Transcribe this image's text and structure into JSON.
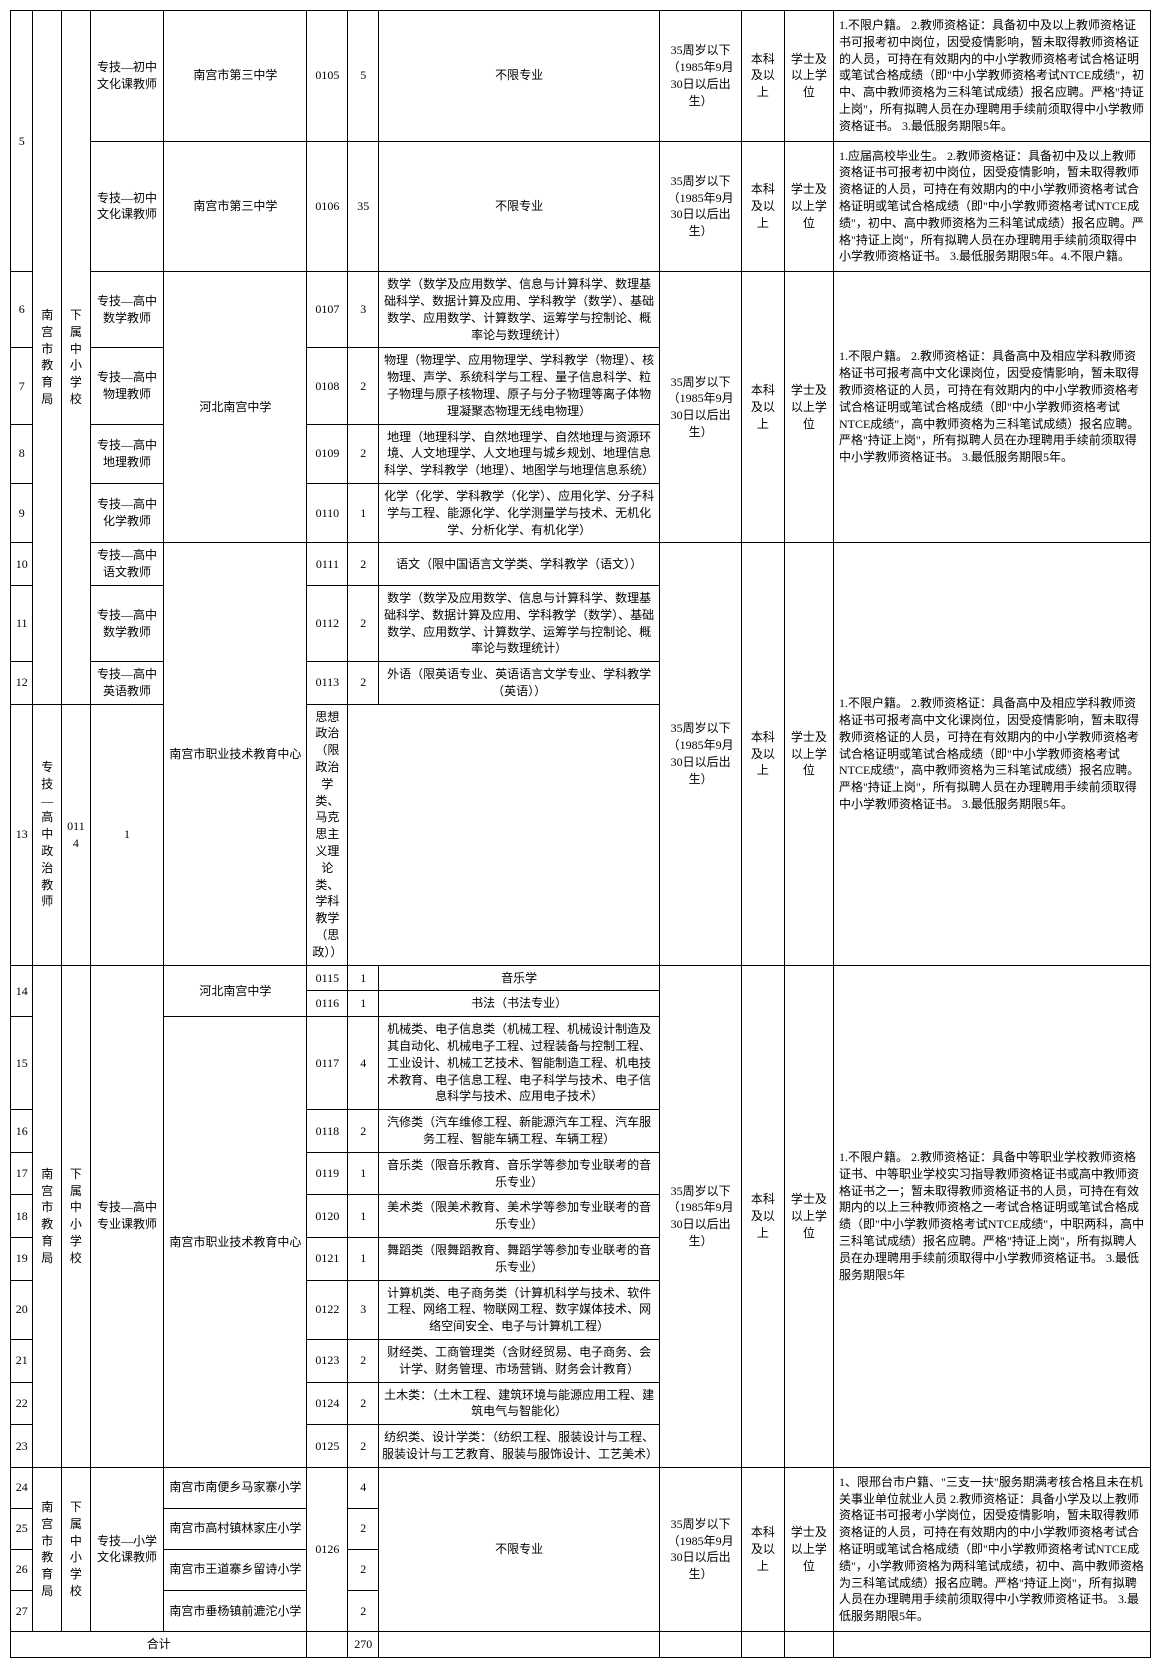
{
  "dept1": "南宫市教育局",
  "unit1": "下属中小学校",
  "dept2": "南宫市教育局",
  "unit2": "下属中小学校",
  "dept3": "南宫市教育局",
  "unit3": "下属中小学校",
  "age_limit": "35周岁以下（1985年9月30日以后出生）",
  "edu": "本科及以上",
  "degree": "学士及以上学位",
  "no_limit": "不限专业",
  "total_label": "合计",
  "total_num": "270",
  "r5_idx": "5",
  "r5_pos": "专技—初中文化课教师",
  "r5_school": "南宫市第三中学",
  "r5_code": "0105",
  "r5_num": "5",
  "r5_req": "1.不限户籍。\n2.教师资格证：具备初中及以上教师资格证书可报考初中岗位，因受疫情影响，暂未取得教师资格证的人员，可持在有效期内的中小学教师资格考试合格证明或笔试合格成绩（即\"中小学教师资格考试NTCE成绩\"，初中、高中教师资格为三科笔试成绩）报名应聘。严格\"持证上岗\"，所有拟聘人员在办理聘用手续前须取得中小学教师资格证书。\n3.最低服务期限5年。",
  "r5b_pos": "专技—初中文化课教师",
  "r5b_school": "南宫市第三中学",
  "r5b_code": "0106",
  "r5b_num": "35",
  "r5b_req": "1.应届高校毕业生。\n2.教师资格证：具备初中及以上教师资格证书可报考初中岗位，因受疫情影响，暂未取得教师资格证的人员，可持在有效期内的中小学教师资格考试合格证明或笔试合格成绩（即\"中小学教师资格考试NTCE成绩\"，初中、高中教师资格为三科笔试成绩）报名应聘。严格\"持证上岗\"，所有拟聘人员在办理聘用手续前须取得中小学教师资格证书。\n3.最低服务期限5年。4.不限户籍。",
  "r6_idx": "6",
  "r6_pos": "专技—高中数学教师",
  "r6_code": "0107",
  "r6_num": "3",
  "r6_major": "数学（数学及应用数学、信息与计算科学、数理基础科学、数据计算及应用、学科教学（数学）、基础数学、应用数学、计算数学、运筹学与控制论、概率论与数理统计）",
  "r7_idx": "7",
  "r7_pos": "专技—高中物理教师",
  "r7_code": "0108",
  "r7_num": "2",
  "r7_major": "物理（物理学、应用物理学、学科教学（物理）、核物理、声学、系统科学与工程、量子信息科学、粒子物理与原子核物理、原子与分子物理等离子体物理凝聚态物理无线电物理）",
  "r8_idx": "8",
  "r8_pos": "专技—高中地理教师",
  "r8_code": "0109",
  "r8_num": "2",
  "r8_major": "地理（地理科学、自然地理学、自然地理与资源环境、人文地理学、人文地理与城乡规划、地理信息科学、学科教学（地理）、地图学与地理信息系统）",
  "r9_idx": "9",
  "r9_pos": "专技—高中化学教师",
  "r9_code": "0110",
  "r9_num": "1",
  "r9_major": "化学（化学、学科教学（化学）、应用化学、分子科学与工程、能源化学、化学测量学与技术、无机化学、分析化学、有机化学）",
  "school_hb": "河北南宫中学",
  "req_hs_sci": "1.不限户籍。\n2.教师资格证：具备高中及相应学科教师资格证书可报考高中文化课岗位，因受疫情影响，暂未取得教师资格证的人员，可持在有效期内的中小学教师资格考试合格证明或笔试合格成绩（即\"中小学教师资格考试NTCE成绩\"，高中教师资格为三科笔试成绩）报名应聘。严格\"持证上岗\"，所有拟聘人员在办理聘用手续前须取得中小学教师资格证书。\n3.最低服务期限5年。",
  "r10_idx": "10",
  "r10_pos": "专技—高中语文教师",
  "r10_code": "0111",
  "r10_num": "2",
  "r10_major": "语文（限中国语言文学类、学科教学（语文））",
  "r11_idx": "11",
  "r11_pos": "专技—高中数学教师",
  "r11_code": "0112",
  "r11_num": "2",
  "r11_major": "数学（数学及应用数学、信息与计算科学、数理基础科学、数据计算及应用、学科教学（数学）、基础数学、应用数学、计算数学、运筹学与控制论、概率论与数理统计）",
  "r12_idx": "12",
  "r12_pos": "专技—高中英语教师",
  "r12_code": "0113",
  "r12_num": "2",
  "r12_major": "外语（限英语专业、英语语言文学专业、学科教学（英语））",
  "r13_idx": "13",
  "r13_pos": "专技—高中政治教师",
  "r13_code": "0114",
  "r13_num": "1",
  "r13_major": "思想政治（限政治学类、马克思主义理论类、学科教学（思政））",
  "school_voc": "南宫市职业技术教育中心",
  "req_hs_lib": "1.不限户籍。\n2.教师资格证：具备高中及相应学科教师资格证书可报考高中文化课岗位，因受疫情影响，暂未取得教师资格证的人员，可持在有效期内的中小学教师资格考试合格证明或笔试合格成绩（即\"中小学教师资格考试NTCE成绩\"，高中教师资格为三科笔试成绩）报名应聘。严格\"持证上岗\"，所有拟聘人员在办理聘用手续前须取得中小学教师资格证书。\n3.最低服务期限5年。",
  "r14_idx": "14",
  "r14a_code": "0115",
  "r14a_num": "1",
  "r14a_major": "音乐学",
  "r14b_code": "0116",
  "r14b_num": "1",
  "r14b_major": "书法（书法专业）",
  "r15_idx": "15",
  "r15_code": "0117",
  "r15_num": "4",
  "r15_major": "机械类、电子信息类（机械工程、机械设计制造及其自动化、机械电子工程、过程装备与控制工程、工业设计、机械工艺技术、智能制造工程、机电技术教育、电子信息工程、电子科学与技术、电子信息科学与技术、应用电子技术）",
  "r16_idx": "16",
  "r16_code": "0118",
  "r16_num": "2",
  "r16_major": "汽修类（汽车维修工程、新能源汽车工程、汽车服务工程、智能车辆工程、车辆工程）",
  "r17_idx": "17",
  "r17_code": "0119",
  "r17_num": "1",
  "r17_major": "音乐类（限音乐教育、音乐学等参加专业联考的音乐专业）",
  "r18_idx": "18",
  "r18_code": "0120",
  "r18_num": "1",
  "r18_major": "美术类（限美术教育、美术学等参加专业联考的音乐专业）",
  "r19_idx": "19",
  "r19_code": "0121",
  "r19_num": "1",
  "r19_major": "舞蹈类（限舞蹈教育、舞蹈学等参加专业联考的音乐专业）",
  "r20_idx": "20",
  "r20_code": "0122",
  "r20_num": "3",
  "r20_major": "计算机类、电子商务类（计算机科学与技术、软件工程、网络工程、物联网工程、数字媒体技术、网络空间安全、电子与计算机工程）",
  "r21_idx": "21",
  "r21_code": "0123",
  "r21_num": "2",
  "r21_major": "财经类、工商管理类（含财经贸易、电子商务、会计学、财务管理、市场营销、财务会计教育）",
  "r22_idx": "22",
  "r22_code": "0124",
  "r22_num": "2",
  "r22_major": "土木类：（土木工程、建筑环境与能源应用工程、建筑电气与智能化）",
  "r23_idx": "23",
  "r23_code": "0125",
  "r23_num": "2",
  "r23_major": "纺织类、设计学类：（纺织工程、服装设计与工程、服装设计与工艺教育、服装与服饰设计、工艺美术）",
  "pos_spec": "专技—高中专业课教师",
  "req_voc": "1.不限户籍。\n2.教师资格证：具备中等职业学校教师资格证书、中等职业学校实习指导教师资格证书或高中教师资格证书之一；暂未取得教师资格证书的人员，可持在有效期内的以上三种教师资格之一考试合格证明或笔试合格成绩（即\"中小学教师资格考试NTCE成绩\"，中职两科，高中三科笔试成绩）报名应聘。严格\"持证上岗\"，所有拟聘人员在办理聘用手续前须取得中小学教师资格证书。\n3.最低服务期限5年",
  "r24_idx": "24",
  "r24_school": "南宫市南便乡马家寨小学",
  "r24_num": "4",
  "r25_idx": "25",
  "r25_school": "南宫市高村镇林家庄小学",
  "r25_num": "2",
  "r26_idx": "26",
  "r26_school": "南宫市王道寨乡留诗小学",
  "r26_num": "2",
  "r27_idx": "27",
  "r27_school": "南宫市垂杨镇前漉沱小学",
  "r27_num": "2",
  "code_prim": "0126",
  "pos_prim": "专技—小学文化课教师",
  "req_prim": "1、限邢台市户籍、\"三支一扶\"服务期满考核合格且未在机关事业单位就业人员                          2.教师资格证：具备小学及以上教师资格证书可报考小学岗位，因受疫情影响，暂未取得教师资格证的人员，可持在有效期内的中小学教师资格考试合格证明或笔试合格成绩（即\"中小学教师资格考试NTCE成绩\"，小学教师资格为两科笔试成绩，初中、高中教师资格为三科笔试成绩）报名应聘。严格\"持证上岗\"，所有拟聘人员在办理聘用手续前须取得中小学教师资格证书。\n3.最低服务期限5年。"
}
